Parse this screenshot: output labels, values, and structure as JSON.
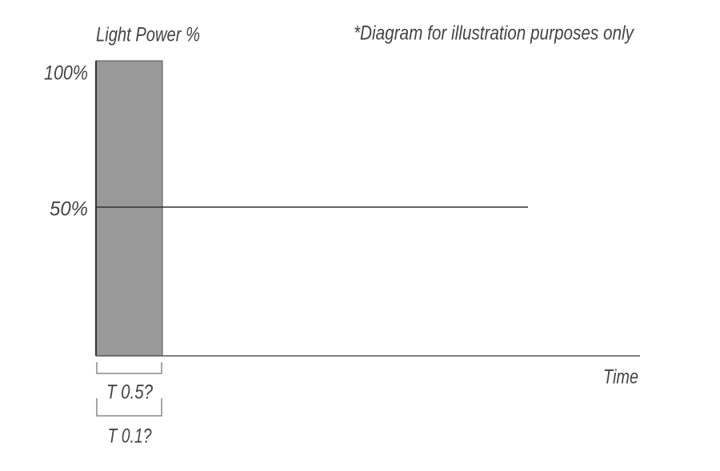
{
  "header": {
    "y_axis_label": "Light Power %",
    "note": "*Diagram for illustration purposes only"
  },
  "y_ticks": [
    "100%",
    "50%"
  ],
  "x_axis_label": "Time",
  "brackets": [
    "T 0.5?",
    "T 0.1?"
  ]
}
